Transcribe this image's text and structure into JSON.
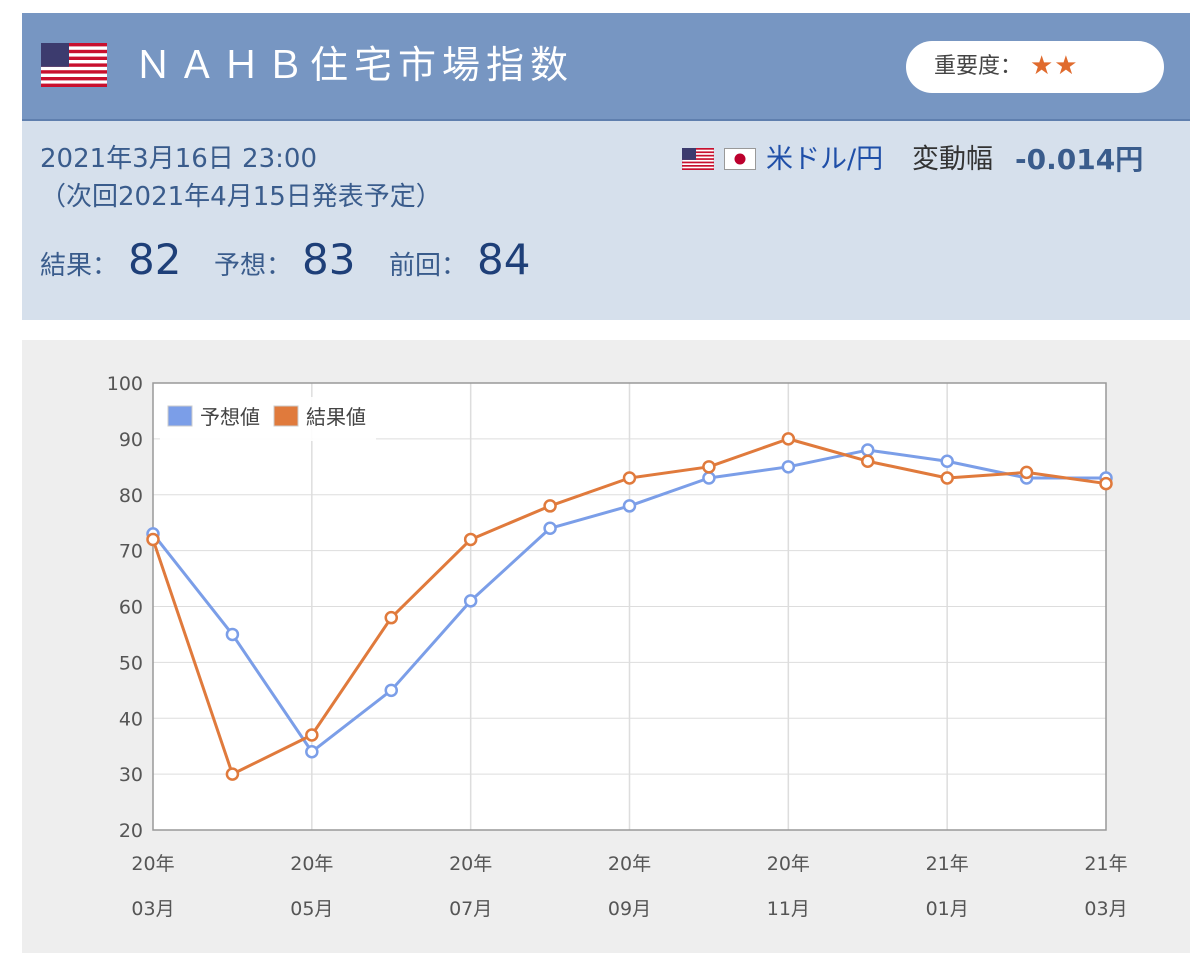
{
  "header": {
    "title": "ＮＡＨＢ住宅市場指数",
    "importance_label": "重要度：",
    "importance_stars": "★★",
    "flag_icon": "us-flag-icon"
  },
  "info": {
    "datetime": "2021年3月16日 23:00",
    "next_release": "（次回2021年4月15日発表予定）",
    "result_label": "結果：",
    "result_value": "82",
    "forecast_label": "予想：",
    "forecast_value": "83",
    "previous_label": "前回：",
    "previous_value": "84",
    "pair": "米ドル/円",
    "change_label": "変動幅",
    "change_value": "-0.014円"
  },
  "colors": {
    "header_bg": "#7796c2",
    "info_bg": "#d6e0ec",
    "forecast": "#7b9ee8",
    "actual": "#e07a3c"
  },
  "chart_data": {
    "type": "line",
    "legend_position": "top-left",
    "grid": true,
    "ylim": [
      20,
      100
    ],
    "yticks": [
      20,
      30,
      40,
      50,
      60,
      70,
      80,
      90,
      100
    ],
    "x": [
      "20-03",
      "20-04",
      "20-05",
      "20-06",
      "20-07",
      "20-08",
      "20-09",
      "20-10",
      "20-11",
      "20-12",
      "21-01",
      "21-02",
      "21-03"
    ],
    "xtick_labels": [
      {
        "year": "20年",
        "month": "03月"
      },
      {
        "year": "20年",
        "month": "05月"
      },
      {
        "year": "20年",
        "month": "07月"
      },
      {
        "year": "20年",
        "month": "09月"
      },
      {
        "year": "20年",
        "month": "11月"
      },
      {
        "year": "21年",
        "month": "01月"
      },
      {
        "year": "21年",
        "month": "03月"
      }
    ],
    "series": [
      {
        "name": "予想値",
        "color": "#7b9ee8",
        "values": [
          73,
          55,
          34,
          45,
          61,
          74,
          78,
          83,
          85,
          88,
          86,
          83,
          83
        ]
      },
      {
        "name": "結果値",
        "color": "#e07a3c",
        "values": [
          72,
          30,
          37,
          58,
          72,
          78,
          83,
          85,
          90,
          86,
          83,
          84,
          82
        ]
      }
    ]
  }
}
